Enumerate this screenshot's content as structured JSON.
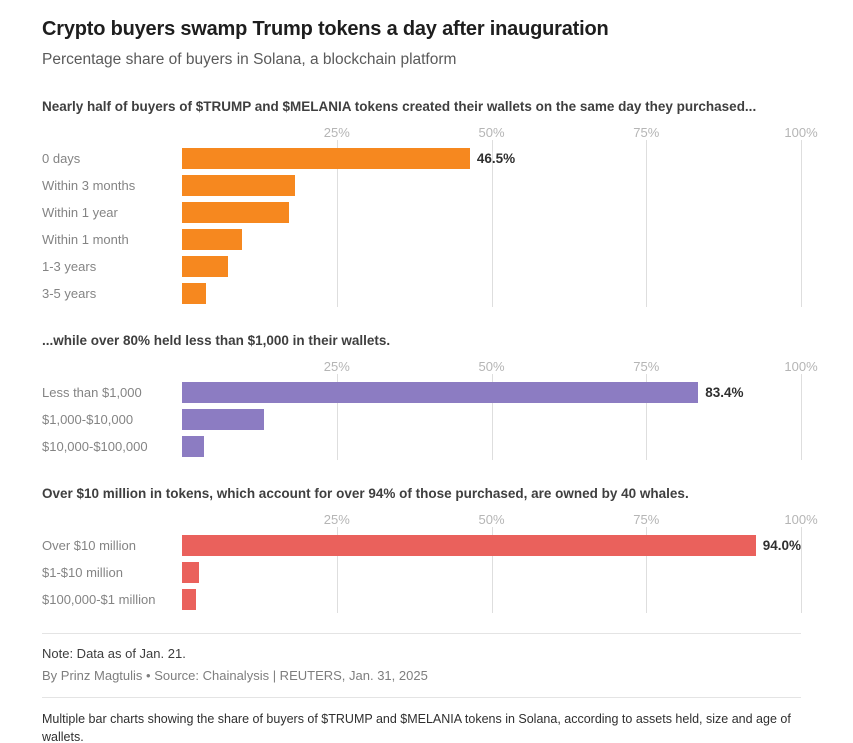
{
  "page": {
    "title": "Crypto buyers swamp Trump tokens a day after inauguration",
    "subtitle": "Percentage share of buyers in Solana, a blockchain platform",
    "note": "Note: Data as of Jan. 21.",
    "byline": "By Prinz Magtulis • Source: Chainalysis | REUTERS, Jan. 31, 2025",
    "alt_text": "Multiple bar charts showing the share of buyers of $TRUMP and $MELANIA tokens in Solana, according to assets held, size and age of wallets."
  },
  "chart_data": [
    {
      "type": "bar",
      "orientation": "horizontal",
      "title": "Nearly half of buyers of $TRUMP and $MELANIA tokens created their wallets on the same day they purchased...",
      "categories": [
        "0 days",
        "Within 3 months",
        "Within 1 year",
        "Within 1 month",
        "1-3 years",
        "3-5 years"
      ],
      "values": [
        46.5,
        18.2,
        17.3,
        9.7,
        7.5,
        3.8
      ],
      "value_labels": [
        "46.5%",
        "",
        "",
        "",
        "",
        ""
      ],
      "bar_color": "#f6881f",
      "xlim": [
        0,
        100
      ],
      "ticks": [
        "25%",
        "50%",
        "75%",
        "100%"
      ],
      "tick_values": [
        25,
        50,
        75,
        100
      ],
      "grid": true,
      "xlabel": "",
      "ylabel": ""
    },
    {
      "type": "bar",
      "orientation": "horizontal",
      "title": "...while over 80% held less than $1,000 in their wallets.",
      "categories": [
        "Less than $1,000",
        "$1,000-$10,000",
        "$10,000-$100,000"
      ],
      "values": [
        83.4,
        13.2,
        3.5
      ],
      "value_labels": [
        "83.4%",
        "",
        ""
      ],
      "bar_color": "#8c7cc2",
      "xlim": [
        0,
        100
      ],
      "ticks": [
        "25%",
        "50%",
        "75%",
        "100%"
      ],
      "tick_values": [
        25,
        50,
        75,
        100
      ],
      "grid": true,
      "xlabel": "",
      "ylabel": ""
    },
    {
      "type": "bar",
      "orientation": "horizontal",
      "title": "Over $10 million in tokens, which account for over 94% of those purchased, are owned by 40 whales.",
      "categories": [
        "Over $10 million",
        "$1-$10 million",
        "$100,000-$1 million"
      ],
      "values": [
        94.0,
        2.7,
        2.2
      ],
      "value_labels": [
        "94.0%",
        "",
        ""
      ],
      "bar_color": "#ea615c",
      "xlim": [
        0,
        100
      ],
      "ticks": [
        "25%",
        "50%",
        "75%",
        "100%"
      ],
      "tick_values": [
        25,
        50,
        75,
        100
      ],
      "grid": true,
      "xlabel": "",
      "ylabel": ""
    }
  ]
}
